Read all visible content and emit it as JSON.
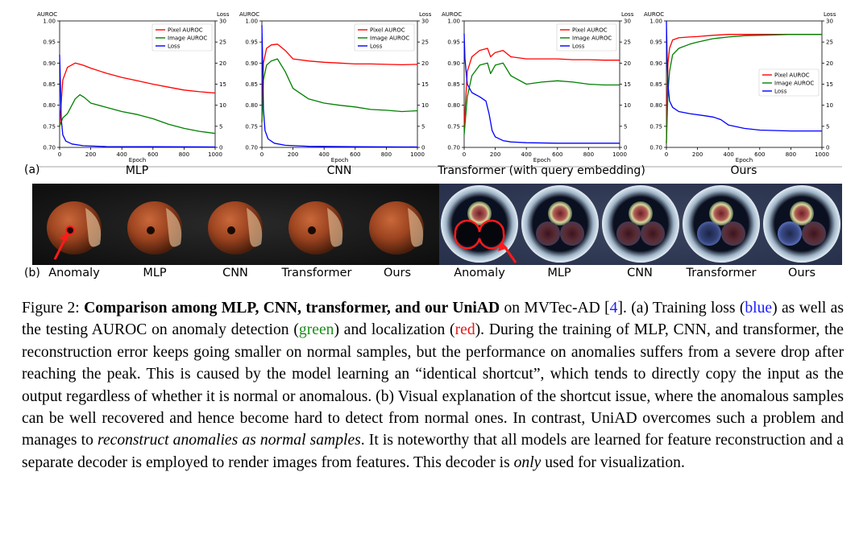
{
  "figure": {
    "part_a_label": "(a)",
    "part_b_label": "(b)",
    "charts_y_axis_label": "AUROC",
    "charts_y2_axis_label": "Loss",
    "charts_x_axis_label": "Epoch",
    "colors": {
      "pixel": "#ff0000",
      "image": "#008000",
      "loss": "#0000ff"
    }
  },
  "chart_data": [
    {
      "type": "line",
      "title": "MLP",
      "xlabel": "Epoch",
      "ylabel": "AUROC",
      "y2label": "Loss",
      "xlim": [
        0,
        1000
      ],
      "ylim": [
        0.7,
        1.0
      ],
      "y2lim": [
        0,
        30
      ],
      "xticks": [
        0,
        200,
        400,
        600,
        800,
        1000
      ],
      "yticks": [
        0.7,
        0.75,
        0.8,
        0.85,
        0.9,
        0.95,
        1.0
      ],
      "y2ticks": [
        0,
        5,
        10,
        15,
        20,
        25,
        30
      ],
      "legend": "top-right",
      "series": [
        {
          "name": "Pixel AUROC",
          "axis": "left",
          "x": [
            0,
            20,
            50,
            100,
            150,
            200,
            300,
            400,
            500,
            600,
            700,
            800,
            900,
            1000
          ],
          "y": [
            0.75,
            0.86,
            0.89,
            0.9,
            0.895,
            0.888,
            0.876,
            0.866,
            0.858,
            0.85,
            0.843,
            0.836,
            0.832,
            0.829
          ]
        },
        {
          "name": "Image AUROC",
          "axis": "left",
          "x": [
            0,
            20,
            50,
            100,
            130,
            160,
            200,
            300,
            400,
            500,
            600,
            700,
            800,
            900,
            1000
          ],
          "y": [
            0.75,
            0.77,
            0.78,
            0.815,
            0.825,
            0.818,
            0.805,
            0.795,
            0.785,
            0.778,
            0.768,
            0.755,
            0.745,
            0.738,
            0.733
          ]
        },
        {
          "name": "Loss",
          "axis": "right",
          "x": [
            0,
            5,
            10,
            20,
            40,
            80,
            150,
            300,
            600,
            1000
          ],
          "y": [
            22,
            15,
            7,
            3,
            1.5,
            0.8,
            0.4,
            0.2,
            0.15,
            0.1
          ]
        }
      ]
    },
    {
      "type": "line",
      "title": "CNN",
      "xlabel": "Epoch",
      "ylabel": "AUROC",
      "y2label": "Loss",
      "xlim": [
        0,
        1000
      ],
      "ylim": [
        0.7,
        1.0
      ],
      "y2lim": [
        0,
        30
      ],
      "xticks": [
        0,
        200,
        400,
        600,
        800,
        1000
      ],
      "yticks": [
        0.7,
        0.75,
        0.8,
        0.85,
        0.9,
        0.95,
        1.0
      ],
      "y2ticks": [
        0,
        5,
        10,
        15,
        20,
        25,
        30
      ],
      "legend": "top-right",
      "series": [
        {
          "name": "Pixel AUROC",
          "axis": "left",
          "x": [
            0,
            10,
            30,
            60,
            100,
            150,
            200,
            300,
            400,
            500,
            600,
            700,
            800,
            900,
            1000
          ],
          "y": [
            0.76,
            0.9,
            0.935,
            0.943,
            0.945,
            0.93,
            0.91,
            0.905,
            0.902,
            0.9,
            0.898,
            0.898,
            0.897,
            0.896,
            0.897
          ]
        },
        {
          "name": "Image AUROC",
          "axis": "left",
          "x": [
            0,
            10,
            30,
            60,
            100,
            150,
            200,
            300,
            400,
            500,
            600,
            700,
            800,
            900,
            1000
          ],
          "y": [
            0.76,
            0.86,
            0.895,
            0.905,
            0.91,
            0.88,
            0.84,
            0.815,
            0.805,
            0.8,
            0.796,
            0.79,
            0.788,
            0.785,
            0.787
          ]
        },
        {
          "name": "Loss",
          "axis": "right",
          "x": [
            0,
            5,
            10,
            20,
            40,
            80,
            150,
            300,
            600,
            1000
          ],
          "y": [
            29,
            20,
            9,
            4,
            2,
            1,
            0.5,
            0.25,
            0.15,
            0.1
          ]
        }
      ]
    },
    {
      "type": "line",
      "title": "Transformer (with query embedding)",
      "xlabel": "Epoch",
      "ylabel": "AUROC",
      "y2label": "Loss",
      "xlim": [
        0,
        1000
      ],
      "ylim": [
        0.7,
        1.0
      ],
      "y2lim": [
        0,
        30
      ],
      "xticks": [
        0,
        200,
        400,
        600,
        800,
        1000
      ],
      "yticks": [
        0.7,
        0.75,
        0.8,
        0.85,
        0.9,
        0.95,
        1.0
      ],
      "y2ticks": [
        0,
        5,
        10,
        15,
        20,
        25,
        30
      ],
      "legend": "top-right",
      "series": [
        {
          "name": "Pixel AUROC",
          "axis": "left",
          "x": [
            0,
            20,
            50,
            100,
            150,
            170,
            200,
            250,
            300,
            400,
            500,
            600,
            700,
            800,
            900,
            1000
          ],
          "y": [
            0.75,
            0.88,
            0.915,
            0.93,
            0.935,
            0.915,
            0.925,
            0.93,
            0.915,
            0.91,
            0.91,
            0.91,
            0.908,
            0.908,
            0.907,
            0.907
          ]
        },
        {
          "name": "Image AUROC",
          "axis": "left",
          "x": [
            0,
            20,
            50,
            100,
            150,
            170,
            200,
            250,
            300,
            400,
            500,
            600,
            700,
            800,
            900,
            1000
          ],
          "y": [
            0.73,
            0.82,
            0.87,
            0.895,
            0.9,
            0.875,
            0.895,
            0.9,
            0.87,
            0.85,
            0.855,
            0.858,
            0.855,
            0.85,
            0.848,
            0.848
          ]
        },
        {
          "name": "Loss",
          "axis": "right",
          "x": [
            0,
            5,
            20,
            50,
            100,
            140,
            160,
            180,
            200,
            250,
            300,
            400,
            600,
            800,
            1000
          ],
          "y": [
            27,
            21,
            15,
            13,
            12,
            11,
            8,
            4,
            2.5,
            1.6,
            1.3,
            1.1,
            1.0,
            1.0,
            1.0
          ]
        }
      ]
    },
    {
      "type": "line",
      "title": "Ours",
      "xlabel": "Epoch",
      "ylabel": "AUROC",
      "y2label": "Loss",
      "xlim": [
        0,
        1000
      ],
      "ylim": [
        0.7,
        1.0
      ],
      "y2lim": [
        0,
        30
      ],
      "xticks": [
        0,
        200,
        400,
        600,
        800,
        1000
      ],
      "yticks": [
        0.7,
        0.75,
        0.8,
        0.85,
        0.9,
        0.95,
        1.0
      ],
      "y2ticks": [
        0,
        5,
        10,
        15,
        20,
        25,
        30
      ],
      "legend": "center-right",
      "series": [
        {
          "name": "Pixel AUROC",
          "axis": "left",
          "x": [
            0,
            10,
            20,
            40,
            80,
            150,
            200,
            300,
            400,
            500,
            600,
            700,
            800,
            900,
            1000
          ],
          "y": [
            0.71,
            0.9,
            0.935,
            0.955,
            0.96,
            0.962,
            0.963,
            0.966,
            0.968,
            0.968,
            0.968,
            0.968,
            0.968,
            0.968,
            0.968
          ]
        },
        {
          "name": "Image AUROC",
          "axis": "left",
          "x": [
            0,
            10,
            20,
            40,
            80,
            150,
            200,
            300,
            400,
            500,
            600,
            700,
            800,
            900,
            1000
          ],
          "y": [
            0.71,
            0.83,
            0.88,
            0.92,
            0.935,
            0.945,
            0.95,
            0.958,
            0.962,
            0.965,
            0.966,
            0.967,
            0.968,
            0.968,
            0.968
          ]
        },
        {
          "name": "Loss",
          "axis": "right",
          "x": [
            0,
            5,
            10,
            20,
            40,
            80,
            150,
            250,
            300,
            350,
            400,
            500,
            600,
            800,
            1000
          ],
          "y": [
            30,
            20,
            15,
            11,
            9.5,
            8.5,
            8,
            7.5,
            7.2,
            6.6,
            5.3,
            4.5,
            4.1,
            3.9,
            3.9
          ]
        }
      ]
    }
  ],
  "image_labels_left": [
    "Anomaly",
    "MLP",
    "CNN",
    "Transformer",
    "Ours"
  ],
  "image_labels_right": [
    "Anomaly",
    "MLP",
    "CNN",
    "Transformer",
    "Ours"
  ],
  "caption": {
    "prefix": "Figure 2:  ",
    "bold": "Comparison among MLP, CNN, transformer, and our UniAD",
    "s1": " on MVTec-AD [",
    "cite": "4",
    "s2": "]. (a) Training loss (",
    "blue": "blue",
    "s3": ") as well as the testing AUROC on anomaly detection (",
    "green": "green",
    "s4": ") and localization (",
    "red": "red",
    "s5": "). During the training of MLP, CNN, and transformer, the reconstruction error keeps going smaller on normal samples, but the performance on anomalies suffers from a severe drop after reaching the peak. This is caused by the model learning an “identical shortcut”, which tends to directly copy the input as the output regardless of whether it is normal or anomalous. (b) Visual explanation of the shortcut issue, where the anomalous samples can be well recovered and hence become hard to detect from normal ones. In contrast, UniAD overcomes such a problem and manages to ",
    "italic1": "reconstruct anomalies as normal samples",
    "s6": ". It is noteworthy that all models are learned for feature reconstruction and a separate decoder is employed to render images from features. This decoder is ",
    "italic2": "only",
    "s7": " used for visualization."
  }
}
